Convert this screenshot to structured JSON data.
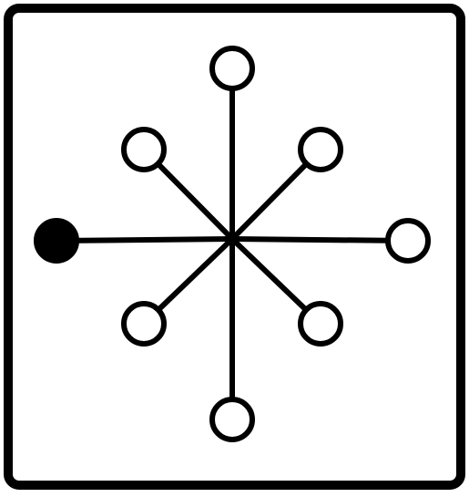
{
  "symbol": {
    "icon": "rotary-selector-switch-icon",
    "stroke_color": "#000000",
    "fill_color": "#ffffff",
    "positions": [
      {
        "id": "left",
        "state": "selected"
      },
      {
        "id": "top",
        "state": "open"
      },
      {
        "id": "top-right",
        "state": "open"
      },
      {
        "id": "right",
        "state": "open"
      },
      {
        "id": "bottom-right",
        "state": "open"
      },
      {
        "id": "bottom",
        "state": "open"
      },
      {
        "id": "bottom-left",
        "state": "open"
      },
      {
        "id": "top-left",
        "state": "open"
      }
    ]
  }
}
